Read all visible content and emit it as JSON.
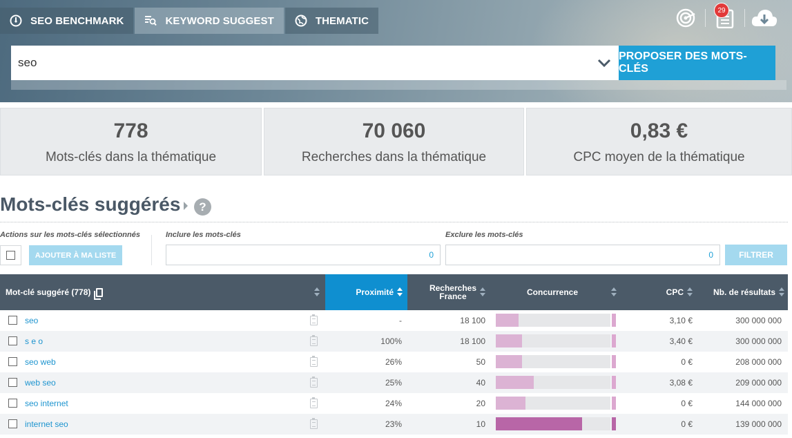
{
  "tabs": [
    {
      "label": "SEO BENCHMARK",
      "icon": "gauge-icon",
      "active": false
    },
    {
      "label": "KEYWORD SUGGEST",
      "icon": "keyword-list-icon",
      "active": true
    },
    {
      "label": "THEMATIC",
      "icon": "globe-icon",
      "active": false
    }
  ],
  "header_icons": {
    "notifications_count": "29"
  },
  "search": {
    "value": "seo",
    "button_label": "PROPOSER DES MOTS-CLÉS"
  },
  "stats": [
    {
      "value": "778",
      "label": "Mots-clés dans la thématique"
    },
    {
      "value": "70 060",
      "label": "Recherches dans la thématique"
    },
    {
      "value": "0,83 €",
      "label": "CPC moyen de la thématique"
    }
  ],
  "section": {
    "title": "Mots-clés suggérés",
    "help": "?"
  },
  "filters": {
    "actions_label": "Actions sur les mots-clés sélectionnés",
    "add_to_list_button": "AJOUTER À MA LISTE",
    "include_label": "Inclure les mots-clés",
    "include_count": "0",
    "exclude_label": "Exclure les mots-clés",
    "exclude_count": "0",
    "filter_button": "FILTRER"
  },
  "table": {
    "headers": {
      "keyword": "Mot-clé suggéré (778)",
      "proximity": "Proximité",
      "searches_line1": "Recherches",
      "searches_line2": "France",
      "competition": "Concurrence",
      "cpc": "CPC",
      "results": "Nb. de résultats"
    },
    "rows": [
      {
        "keyword": "seo",
        "proximity": "-",
        "searches": "18 100",
        "competition": 0.2,
        "cpc": "3,10 €",
        "results": "300 000 000"
      },
      {
        "keyword": "s e o",
        "proximity": "100%",
        "searches": "18 100",
        "competition": 0.23,
        "cpc": "3,40 €",
        "results": "300 000 000"
      },
      {
        "keyword": "seo web",
        "proximity": "26%",
        "searches": "50",
        "competition": 0.23,
        "cpc": "0 €",
        "results": "208 000 000"
      },
      {
        "keyword": "web seo",
        "proximity": "25%",
        "searches": "40",
        "competition": 0.33,
        "cpc": "3,08 €",
        "results": "209 000 000"
      },
      {
        "keyword": "seo internet",
        "proximity": "24%",
        "searches": "20",
        "competition": 0.26,
        "cpc": "0 €",
        "results": "144 000 000"
      },
      {
        "keyword": "internet seo",
        "proximity": "23%",
        "searches": "10",
        "competition": 0.75,
        "cpc": "0 €",
        "results": "139 000 000"
      }
    ]
  },
  "colors": {
    "accent": "#1fa0d6",
    "table_header": "#4b5a68",
    "active_header": "#0f8fd0",
    "competition_light": "#dcb3d4",
    "competition_strong": "#b866a7"
  }
}
